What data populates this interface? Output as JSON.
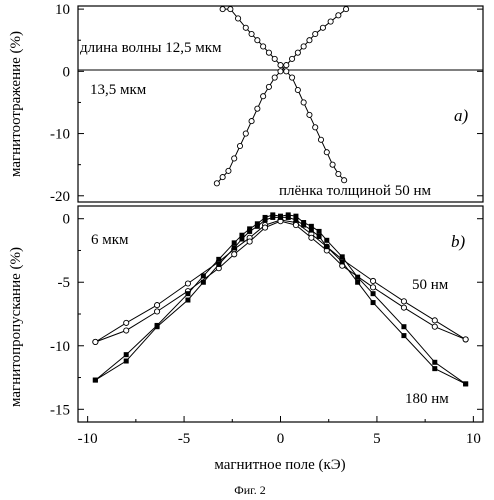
{
  "figure": {
    "caption": "Фиг. 2",
    "x_axis_label": "магнитное поле (кЭ)"
  },
  "chart_data": [
    {
      "panel": "top",
      "type": "line",
      "panel_label": "a)",
      "ylabel": "магнитоотражение (%)",
      "xlim": [
        -10.5,
        10.5
      ],
      "ylim": [
        -21,
        10.5
      ],
      "yticks": [
        10,
        0,
        -10,
        -20
      ],
      "zero_line": true,
      "annotations": {
        "wavelength_1": "длина волны 12,5 мкм",
        "wavelength_2": "13,5 мкм",
        "film": "плёнка толщиной 50 нм"
      },
      "series": [
        {
          "marker": "open-circle",
          "points": [
            [
              -3.0,
              10.0
            ],
            [
              -2.6,
              10.0
            ],
            [
              -2.2,
              8.5
            ],
            [
              -1.8,
              7.0
            ],
            [
              -1.5,
              6.0
            ],
            [
              -1.2,
              5.0
            ],
            [
              -0.9,
              4.0
            ],
            [
              -0.6,
              3.0
            ],
            [
              -0.3,
              2.0
            ],
            [
              0.0,
              1.0
            ],
            [
              0.3,
              0.0
            ],
            [
              0.6,
              -1.0
            ],
            [
              0.9,
              -3.0
            ],
            [
              1.2,
              -5.0
            ],
            [
              1.5,
              -7.0
            ],
            [
              1.8,
              -9.0
            ],
            [
              2.1,
              -11.0
            ],
            [
              2.4,
              -13.0
            ],
            [
              2.7,
              -15.0
            ],
            [
              3.0,
              -16.5
            ],
            [
              3.3,
              -17.5
            ]
          ]
        },
        {
          "marker": "open-circle",
          "points": [
            [
              3.4,
              10.0
            ],
            [
              3.0,
              9.0
            ],
            [
              2.6,
              8.0
            ],
            [
              2.2,
              7.0
            ],
            [
              1.8,
              6.0
            ],
            [
              1.5,
              5.0
            ],
            [
              1.2,
              4.0
            ],
            [
              0.9,
              3.0
            ],
            [
              0.6,
              2.0
            ],
            [
              0.3,
              1.0
            ],
            [
              0.0,
              0.0
            ],
            [
              -0.3,
              -1.0
            ],
            [
              -0.6,
              -2.5
            ],
            [
              -0.9,
              -4.0
            ],
            [
              -1.2,
              -6.0
            ],
            [
              -1.5,
              -8.0
            ],
            [
              -1.8,
              -10.0
            ],
            [
              -2.1,
              -12.0
            ],
            [
              -2.4,
              -14.0
            ],
            [
              -2.7,
              -16.0
            ],
            [
              -3.0,
              -17.0
            ],
            [
              -3.3,
              -18.0
            ]
          ]
        }
      ]
    },
    {
      "panel": "bottom",
      "type": "line",
      "panel_label": "b)",
      "ylabel": "магнитопропускание (%)",
      "xlim": [
        -10.5,
        10.5
      ],
      "ylim": [
        -16,
        1
      ],
      "xticks": [
        -10,
        -5,
        0,
        5,
        10
      ],
      "yticks": [
        0,
        -5,
        -10,
        -15
      ],
      "annotations": {
        "wavelength": "6 мкм",
        "series_50": "50 нм",
        "series_180": "180 нм"
      },
      "series": [
        {
          "name": "50 нм",
          "marker": "open-circle",
          "points": [
            [
              -9.6,
              -9.7
            ],
            [
              -8.0,
              -8.2
            ],
            [
              -6.4,
              -6.8
            ],
            [
              -4.8,
              -5.1
            ],
            [
              -3.2,
              -3.4
            ],
            [
              -2.4,
              -2.4
            ],
            [
              -1.6,
              -1.5
            ],
            [
              -0.8,
              -0.5
            ],
            [
              0.0,
              -0.1
            ],
            [
              0.8,
              -0.3
            ],
            [
              1.6,
              -1.2
            ],
            [
              2.4,
              -2.2
            ],
            [
              3.2,
              -3.2
            ],
            [
              4.8,
              -4.9
            ],
            [
              6.4,
              -6.5
            ],
            [
              8.0,
              -8.0
            ],
            [
              9.6,
              -9.5
            ]
          ]
        },
        {
          "name": "50 нм",
          "marker": "open-circle",
          "points": [
            [
              -9.6,
              -9.7
            ],
            [
              -8.0,
              -8.8
            ],
            [
              -6.4,
              -7.3
            ],
            [
              -4.8,
              -5.7
            ],
            [
              -3.2,
              -3.9
            ],
            [
              -2.4,
              -2.8
            ],
            [
              -1.6,
              -1.8
            ],
            [
              -0.8,
              -0.7
            ],
            [
              0.0,
              -0.2
            ],
            [
              0.8,
              -0.5
            ],
            [
              1.6,
              -1.5
            ],
            [
              2.4,
              -2.5
            ],
            [
              3.2,
              -3.7
            ],
            [
              4.8,
              -5.4
            ],
            [
              6.4,
              -7.0
            ],
            [
              8.0,
              -8.5
            ],
            [
              9.6,
              -9.5
            ]
          ]
        },
        {
          "name": "180 нм",
          "marker": "filled-square",
          "points": [
            [
              -9.6,
              -12.7
            ],
            [
              -8.0,
              -10.7
            ],
            [
              -6.4,
              -8.4
            ],
            [
              -4.8,
              -5.9
            ],
            [
              -4.0,
              -4.5
            ],
            [
              -3.2,
              -3.2
            ],
            [
              -2.4,
              -1.9
            ],
            [
              -2.0,
              -1.3
            ],
            [
              -1.6,
              -0.8
            ],
            [
              -1.2,
              -0.4
            ],
            [
              -0.8,
              0.1
            ],
            [
              -0.4,
              0.3
            ],
            [
              0.0,
              0.2
            ],
            [
              0.4,
              0.3
            ],
            [
              0.8,
              0.2
            ],
            [
              1.2,
              -0.3
            ],
            [
              1.6,
              -0.6
            ],
            [
              2.0,
              -1.0
            ],
            [
              2.4,
              -1.7
            ],
            [
              3.2,
              -3.0
            ],
            [
              4.0,
              -4.6
            ],
            [
              4.8,
              -5.9
            ],
            [
              6.4,
              -8.5
            ],
            [
              8.0,
              -11.3
            ],
            [
              9.6,
              -13.0
            ]
          ]
        },
        {
          "name": "180 нм",
          "marker": "filled-square",
          "points": [
            [
              -9.6,
              -12.7
            ],
            [
              -8.0,
              -11.2
            ],
            [
              -6.4,
              -8.5
            ],
            [
              -4.8,
              -6.4
            ],
            [
              -4.0,
              -5.0
            ],
            [
              -3.2,
              -3.6
            ],
            [
              -2.4,
              -2.3
            ],
            [
              -2.0,
              -1.6
            ],
            [
              -1.6,
              -1.0
            ],
            [
              -1.2,
              -0.6
            ],
            [
              -0.8,
              -0.1
            ],
            [
              -0.4,
              0.1
            ],
            [
              0.0,
              0.1
            ],
            [
              0.4,
              0.1
            ],
            [
              0.8,
              -0.1
            ],
            [
              1.2,
              -0.5
            ],
            [
              1.6,
              -0.9
            ],
            [
              2.0,
              -1.4
            ],
            [
              2.4,
              -2.2
            ],
            [
              3.2,
              -3.4
            ],
            [
              4.0,
              -5.0
            ],
            [
              4.8,
              -6.6
            ],
            [
              6.4,
              -9.2
            ],
            [
              8.0,
              -11.8
            ],
            [
              9.6,
              -13.0
            ]
          ]
        }
      ]
    }
  ]
}
